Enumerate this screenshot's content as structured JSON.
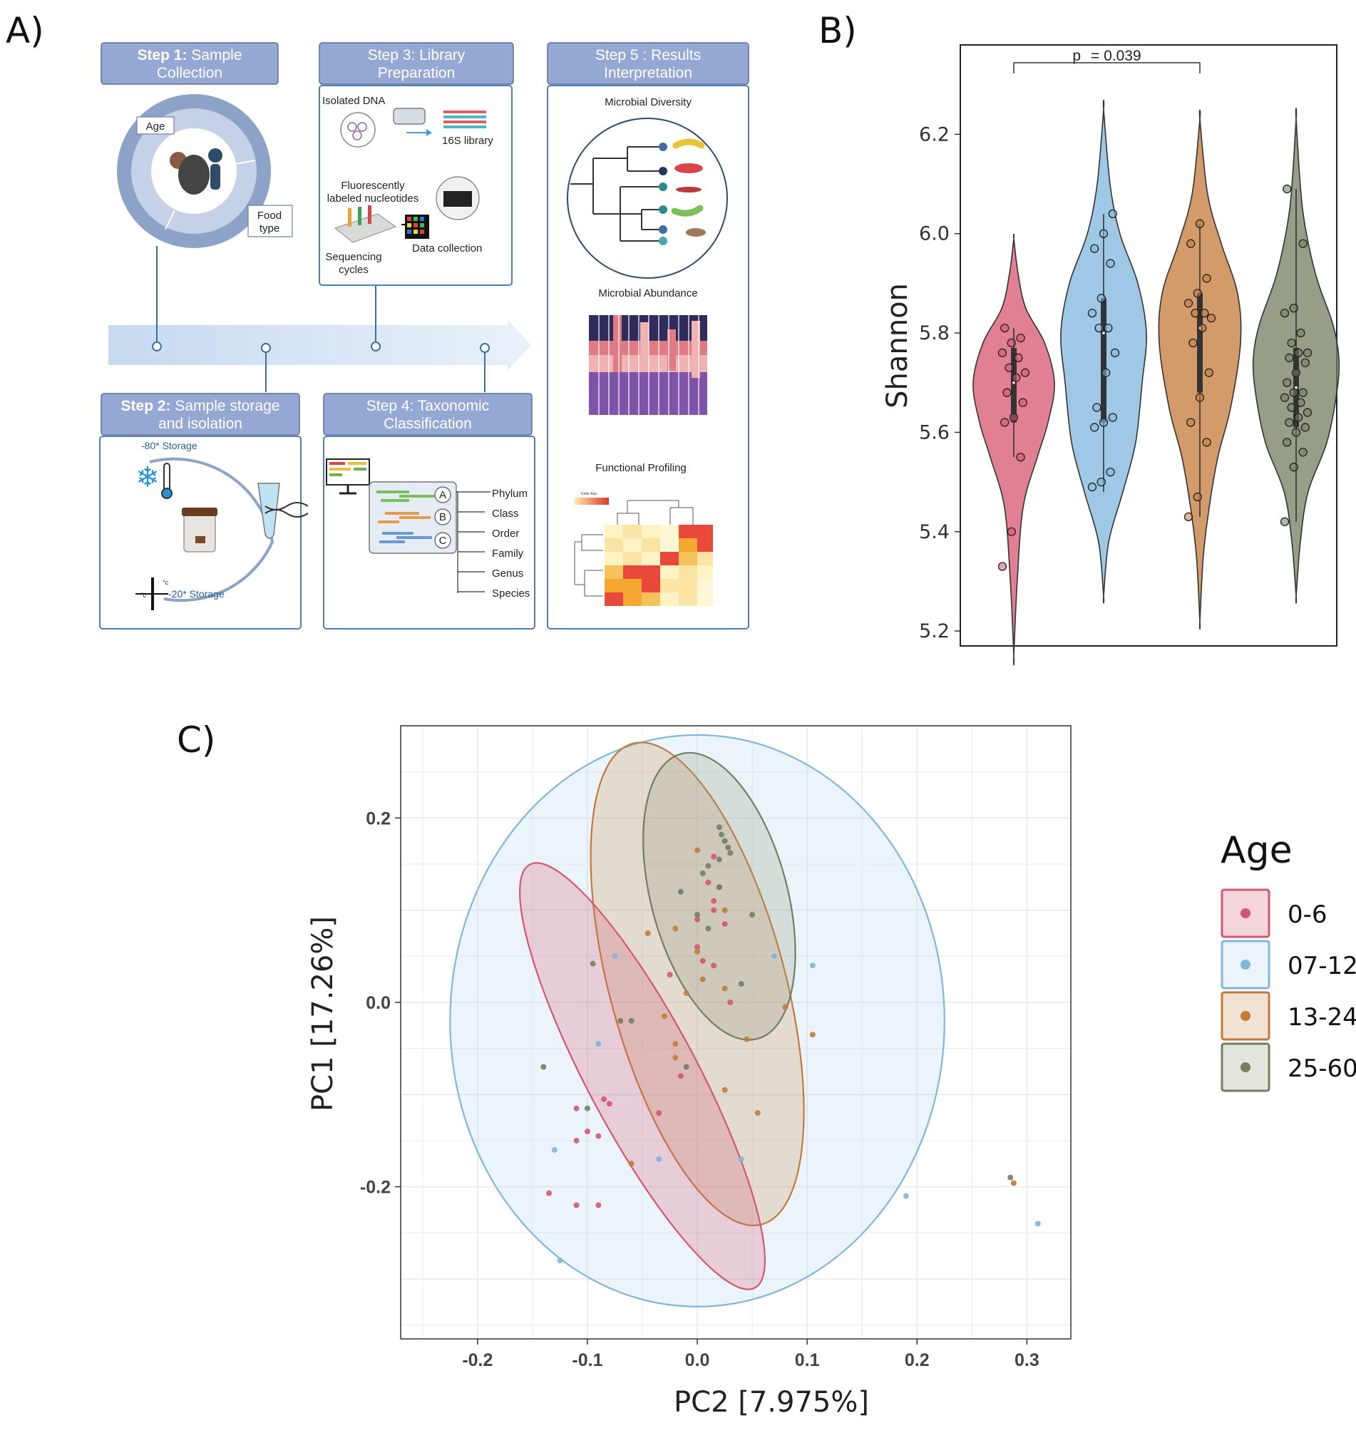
{
  "panels": {
    "a": "A)",
    "b": "B)",
    "c": "C)"
  },
  "workflow": {
    "step1": {
      "bold": "Step 1:",
      "rest": " Sample",
      "line2": "Collection",
      "age_label": "Age",
      "food_l1": "Food",
      "food_l2": "type"
    },
    "step2": {
      "bold": "Step 2:",
      "rest": " Sample storage",
      "line2": "and isolation",
      "storage80": "-80* Storage",
      "storage20": "-20* Storage",
      "unit": "°c"
    },
    "step3": {
      "line1": "Step 3: Library",
      "line2": "Preparation",
      "isolated_dna": "Isolated DNA",
      "library": "16S library",
      "fluor_l1": "Fluorescently",
      "fluor_l2": "labeled nucleotides",
      "data_collection": "Data collection",
      "seq_l1": "Sequencing",
      "seq_l2": "cycles"
    },
    "step4": {
      "line1": "Step 4: Taxonomic",
      "line2": "Classification",
      "group_a": "A",
      "group_b": "B",
      "group_c": "C",
      "ranks": [
        "Phylum",
        "Class",
        "Order",
        "Family",
        "Genus",
        "Species"
      ]
    },
    "step5": {
      "line1": "Step 5 : Results",
      "line2": "Interpretation",
      "diversity": "Microbial Diversity",
      "abundance": "Microbial Abundance",
      "functional": "Functional Profiling",
      "color_key": "Color Key"
    }
  },
  "colors": {
    "g0_6": "#d5566e",
    "g07_12": "#7fb6de",
    "g13_24": "#c47a38",
    "g25_60": "#737e5f",
    "g0_6_fill": "#d5566e",
    "g07_12_fill": "#b4d4ee",
    "g13_24_fill": "#c98b4e",
    "g25_60_fill": "#8e9679"
  },
  "chart_data": [
    {
      "type": "violin",
      "ylabel": "Shannon",
      "ylim": [
        5.17,
        6.38
      ],
      "yticks": [
        5.2,
        5.4,
        5.6,
        5.8,
        6.0,
        6.2
      ],
      "ytick_labels": [
        "5.2",
        "5.4",
        "5.6",
        "5.8",
        "6.0",
        "6.2"
      ],
      "annotation": {
        "p_label": "p",
        "p_value": "= 0.039",
        "from_group": "0-6",
        "to_group": "13-24"
      },
      "groups": [
        {
          "name": "0-6",
          "color_key": "g0_6",
          "min": 5.15,
          "max": 5.99,
          "q1": 5.62,
          "median": 5.7,
          "q3": 5.77,
          "whisker_low": 5.55,
          "whisker_high": 5.81,
          "profile": [
            [
              5.15,
              0.0
            ],
            [
              5.3,
              0.08
            ],
            [
              5.45,
              0.22
            ],
            [
              5.55,
              0.55
            ],
            [
              5.62,
              0.8
            ],
            [
              5.7,
              0.95
            ],
            [
              5.78,
              0.72
            ],
            [
              5.85,
              0.28
            ],
            [
              5.92,
              0.1
            ],
            [
              5.99,
              0.0
            ]
          ],
          "points": [
            5.33,
            5.4,
            5.55,
            5.62,
            5.63,
            5.66,
            5.68,
            5.71,
            5.72,
            5.73,
            5.75,
            5.76,
            5.78,
            5.79,
            5.81
          ]
        },
        {
          "name": "07-12",
          "color_key": "g07_12",
          "min": 5.27,
          "max": 6.25,
          "q1": 5.62,
          "median": 5.8,
          "q3": 5.87,
          "whisker_low": 5.48,
          "whisker_high": 6.04,
          "profile": [
            [
              5.27,
              0.0
            ],
            [
              5.38,
              0.12
            ],
            [
              5.48,
              0.45
            ],
            [
              5.58,
              0.75
            ],
            [
              5.7,
              0.9
            ],
            [
              5.8,
              1.0
            ],
            [
              5.9,
              0.8
            ],
            [
              6.0,
              0.38
            ],
            [
              6.1,
              0.15
            ],
            [
              6.25,
              0.0
            ]
          ],
          "points": [
            5.49,
            5.5,
            5.52,
            5.61,
            5.62,
            5.63,
            5.65,
            5.72,
            5.76,
            5.81,
            5.81,
            5.84,
            5.87,
            5.94,
            5.97,
            6.0,
            6.04
          ]
        },
        {
          "name": "13-24",
          "color_key": "g13_24",
          "min": 5.22,
          "max": 6.23,
          "q1": 5.68,
          "median": 5.81,
          "q3": 5.88,
          "whisker_low": 5.43,
          "whisker_high": 6.02,
          "profile": [
            [
              5.22,
              0.0
            ],
            [
              5.35,
              0.08
            ],
            [
              5.45,
              0.22
            ],
            [
              5.55,
              0.42
            ],
            [
              5.65,
              0.72
            ],
            [
              5.78,
              0.95
            ],
            [
              5.88,
              0.88
            ],
            [
              5.98,
              0.5
            ],
            [
              6.08,
              0.18
            ],
            [
              6.23,
              0.0
            ]
          ],
          "points": [
            5.43,
            5.47,
            5.58,
            5.62,
            5.67,
            5.72,
            5.78,
            5.81,
            5.83,
            5.84,
            5.84,
            5.86,
            5.88,
            5.91,
            5.98,
            6.02
          ]
        },
        {
          "name": "25-60",
          "color_key": "g25_60",
          "min": 5.27,
          "max": 6.23,
          "q1": 5.61,
          "median": 5.69,
          "q3": 5.77,
          "whisker_low": 5.42,
          "whisker_high": 6.09,
          "profile": [
            [
              5.27,
              0.0
            ],
            [
              5.38,
              0.1
            ],
            [
              5.48,
              0.28
            ],
            [
              5.58,
              0.72
            ],
            [
              5.68,
              0.95
            ],
            [
              5.75,
              1.0
            ],
            [
              5.82,
              0.85
            ],
            [
              5.92,
              0.45
            ],
            [
              6.05,
              0.15
            ],
            [
              6.23,
              0.0
            ]
          ],
          "points": [
            5.42,
            5.53,
            5.56,
            5.58,
            5.6,
            5.61,
            5.62,
            5.63,
            5.64,
            5.65,
            5.66,
            5.67,
            5.68,
            5.68,
            5.7,
            5.72,
            5.74,
            5.75,
            5.76,
            5.76,
            5.78,
            5.8,
            5.84,
            5.85,
            5.98,
            6.09
          ]
        }
      ]
    },
    {
      "type": "scatter",
      "xlabel": "PC2  [7.975%]",
      "ylabel": "PC1  [17.26%]",
      "xlim": [
        -0.27,
        0.34
      ],
      "ylim": [
        -0.365,
        0.3
      ],
      "xticks": [
        -0.2,
        -0.1,
        0.0,
        0.1,
        0.2,
        0.3
      ],
      "xtick_labels": [
        "-0.2",
        "-0.1",
        "0.0",
        "0.1",
        "0.2",
        "0.3"
      ],
      "yticks": [
        -0.2,
        0.0,
        0.2
      ],
      "ytick_labels": [
        "-0.2",
        "0.0",
        "0.2"
      ],
      "legend": {
        "title": "Age",
        "position": "right",
        "entries": [
          "0-6",
          "07-12",
          "13-24",
          "25-60"
        ]
      },
      "ellipses": [
        {
          "group": "07-12",
          "color_key": "g07_12",
          "cx": 0.0,
          "cy": -0.02,
          "rx": 0.225,
          "ry": 0.31,
          "angle": 0
        },
        {
          "group": "13-24",
          "color_key": "g13_24",
          "cx": 0.0,
          "cy": 0.02,
          "rx": 0.08,
          "ry": 0.27,
          "angle": -15
        },
        {
          "group": "25-60",
          "color_key": "g25_60",
          "cx": 0.02,
          "cy": 0.115,
          "rx": 0.062,
          "ry": 0.16,
          "angle": -15
        },
        {
          "group": "0-6",
          "color_key": "g0_6",
          "cx": -0.05,
          "cy": -0.08,
          "rx": 0.05,
          "ry": 0.26,
          "angle": -28
        }
      ],
      "series": [
        {
          "name": "0-6",
          "color_key": "g0_6",
          "points": [
            [
              -0.135,
              -0.207
            ],
            [
              -0.11,
              -0.22
            ],
            [
              -0.09,
              -0.22
            ],
            [
              -0.11,
              -0.15
            ],
            [
              -0.11,
              -0.115
            ],
            [
              -0.09,
              -0.145
            ],
            [
              -0.08,
              -0.11
            ],
            [
              -0.035,
              -0.12
            ],
            [
              0.03,
              0.0
            ],
            [
              0.015,
              0.04
            ],
            [
              0.0,
              0.09
            ],
            [
              0.005,
              0.045
            ],
            [
              0.025,
              0.085
            ],
            [
              0.015,
              0.1
            ],
            [
              0.01,
              0.13
            ],
            [
              0.015,
              0.158
            ],
            [
              -0.015,
              -0.08
            ],
            [
              -0.0,
              0.06
            ],
            [
              -0.025,
              0.03
            ],
            [
              0.015,
              0.11
            ],
            [
              -0.085,
              -0.105
            ],
            [
              -0.1,
              -0.14
            ]
          ]
        },
        {
          "name": "07-12",
          "color_key": "g07_12",
          "points": [
            [
              -0.13,
              -0.16
            ],
            [
              -0.125,
              -0.28
            ],
            [
              -0.09,
              -0.045
            ],
            [
              -0.035,
              -0.17
            ],
            [
              0.04,
              -0.17
            ],
            [
              0.07,
              0.05
            ],
            [
              0.105,
              0.04
            ],
            [
              0.19,
              -0.21
            ],
            [
              0.31,
              -0.24
            ],
            [
              -0.075,
              0.05
            ]
          ]
        },
        {
          "name": "13-24",
          "color_key": "g13_24",
          "points": [
            [
              -0.06,
              -0.175
            ],
            [
              -0.02,
              -0.045
            ],
            [
              0.025,
              -0.095
            ],
            [
              0.055,
              -0.12
            ],
            [
              0.08,
              -0.005
            ],
            [
              0.105,
              -0.035
            ],
            [
              0.045,
              -0.04
            ],
            [
              0.025,
              0.015
            ],
            [
              0.025,
              0.1
            ],
            [
              -0.02,
              -0.06
            ],
            [
              -0.03,
              -0.015
            ],
            [
              0.0,
              0.055
            ],
            [
              0.02,
              0.125
            ],
            [
              0.0,
              0.165
            ],
            [
              -0.02,
              0.08
            ],
            [
              -0.045,
              0.075
            ],
            [
              -0.01,
              0.01
            ],
            [
              0.005,
              0.025
            ],
            [
              0.288,
              -0.196
            ]
          ]
        },
        {
          "name": "25-60",
          "color_key": "g25_60",
          "points": [
            [
              0.02,
              0.19
            ],
            [
              0.022,
              0.182
            ],
            [
              0.025,
              0.175
            ],
            [
              0.028,
              0.168
            ],
            [
              0.03,
              0.162
            ],
            [
              0.02,
              0.155
            ],
            [
              0.01,
              0.148
            ],
            [
              0.005,
              0.14
            ],
            [
              0.02,
              0.125
            ],
            [
              0.0,
              0.095
            ],
            [
              0.01,
              0.08
            ],
            [
              0.05,
              0.095
            ],
            [
              -0.095,
              0.042
            ],
            [
              -0.14,
              -0.07
            ],
            [
              -0.1,
              -0.115
            ],
            [
              -0.01,
              -0.07
            ],
            [
              -0.06,
              -0.02
            ],
            [
              -0.07,
              -0.02
            ],
            [
              0.285,
              -0.19
            ],
            [
              0.04,
              0.02
            ],
            [
              -0.015,
              0.12
            ]
          ]
        }
      ]
    }
  ]
}
